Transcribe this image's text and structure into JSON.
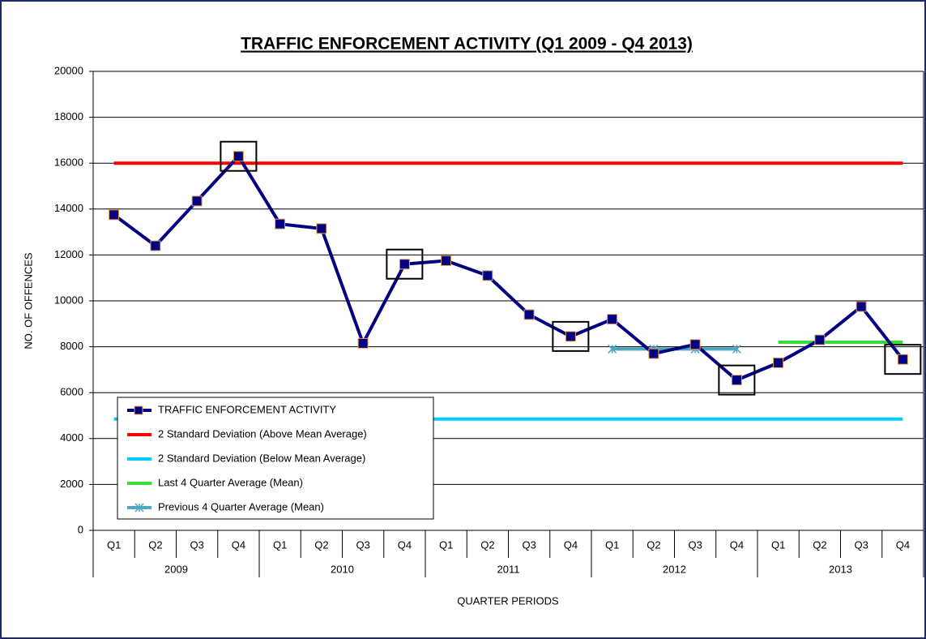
{
  "chart_data": {
    "type": "line",
    "title": "TRAFFIC ENFORCEMENT  ACTIVITY  (Q1 2009 - Q4 2013)",
    "x_label": "QUARTER PERIODS",
    "y_label": "NO. OF OFFENCES",
    "categories": [
      "Q1",
      "Q2",
      "Q3",
      "Q4",
      "Q1",
      "Q2",
      "Q3",
      "Q4",
      "Q1",
      "Q2",
      "Q3",
      "Q4",
      "Q1",
      "Q2",
      "Q3",
      "Q4",
      "Q1",
      "Q2",
      "Q3",
      "Q4"
    ],
    "years": [
      "2009",
      "2010",
      "2011",
      "2012",
      "2013"
    ],
    "ylim": [
      0,
      20000
    ],
    "yticks": [
      0,
      2000,
      4000,
      6000,
      8000,
      10000,
      12000,
      14000,
      16000,
      18000,
      20000
    ],
    "grid": true,
    "legend": "lower left",
    "series": [
      {
        "name": "TRAFFIC ENFORCEMENT ACTIVITY",
        "color": "#000080",
        "marker": "square",
        "values": [
          13750,
          12400,
          14350,
          16300,
          13350,
          13150,
          8150,
          11600,
          11750,
          11100,
          9400,
          8450,
          9200,
          7700,
          8100,
          6550,
          7300,
          8300,
          9750,
          7450
        ]
      },
      {
        "name": "2 Standard Deviation (Above Mean Average)",
        "color": "#ff0000",
        "values": [
          16000,
          16000,
          16000,
          16000,
          16000,
          16000,
          16000,
          16000,
          16000,
          16000,
          16000,
          16000,
          16000,
          16000,
          16000,
          16000,
          16000,
          16000,
          16000,
          16000
        ]
      },
      {
        "name": "2 Standard Deviation (Below Mean Average)",
        "color": "#00ccff",
        "values": [
          4850,
          4850,
          4850,
          4850,
          4850,
          4850,
          4850,
          4850,
          4850,
          4850,
          4850,
          4850,
          4850,
          4850,
          4850,
          4850,
          4850,
          4850,
          4850,
          4850
        ]
      },
      {
        "name": "Last 4 Quarter Average (Mean)",
        "color": "#33dd33",
        "values": [
          null,
          null,
          null,
          null,
          null,
          null,
          null,
          null,
          null,
          null,
          null,
          null,
          null,
          null,
          null,
          null,
          8200,
          8200,
          8200,
          8200
        ]
      },
      {
        "name": "Previous 4 Quarter Average (Mean)",
        "color": "#4aa8c0",
        "marker": "star",
        "values": [
          null,
          null,
          null,
          null,
          null,
          null,
          null,
          null,
          null,
          null,
          null,
          null,
          7900,
          7900,
          7900,
          7900,
          null,
          null,
          null,
          null
        ]
      }
    ]
  }
}
